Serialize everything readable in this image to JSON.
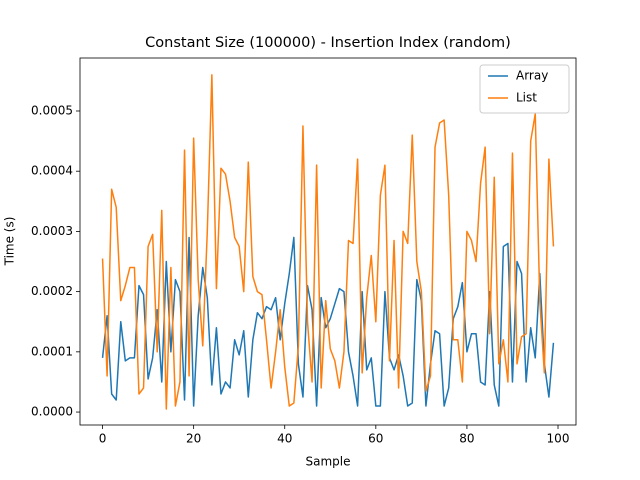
{
  "chart_data": {
    "type": "line",
    "title": "Constant Size (100000) - Insertion Index (random)",
    "x_label": "Sample",
    "y_label": "Time (s)",
    "x": [
      0,
      1,
      2,
      3,
      4,
      5,
      6,
      7,
      8,
      9,
      10,
      11,
      12,
      13,
      14,
      15,
      16,
      17,
      18,
      19,
      20,
      21,
      22,
      23,
      24,
      25,
      26,
      27,
      28,
      29,
      30,
      31,
      32,
      33,
      34,
      35,
      36,
      37,
      38,
      39,
      40,
      41,
      42,
      43,
      44,
      45,
      46,
      47,
      48,
      49,
      50,
      51,
      52,
      53,
      54,
      55,
      56,
      57,
      58,
      59,
      60,
      61,
      62,
      63,
      64,
      65,
      66,
      67,
      68,
      69,
      70,
      71,
      72,
      73,
      74,
      75,
      76,
      77,
      78,
      79,
      80,
      81,
      82,
      83,
      84,
      85,
      86,
      87,
      88,
      89,
      90,
      91,
      92,
      93,
      94,
      95,
      96,
      97,
      98,
      99
    ],
    "series": [
      {
        "name": "Array",
        "color": "#1f77b4",
        "values": [
          9e-05,
          0.00016,
          3e-05,
          2e-05,
          0.00015,
          8.5e-05,
          9e-05,
          9e-05,
          0.00021,
          0.000195,
          5.5e-05,
          9e-05,
          0.00017,
          5e-05,
          0.00025,
          0.0001,
          0.00022,
          0.0002,
          2e-05,
          0.00029,
          1e-05,
          0.00016,
          0.00024,
          0.00019,
          4.5e-05,
          0.00014,
          3e-05,
          5e-05,
          4e-05,
          0.00012,
          9.5e-05,
          0.000135,
          2.5e-05,
          0.00012,
          0.000165,
          0.000155,
          0.000175,
          0.00017,
          0.00019,
          0.00012,
          0.00018,
          0.00023,
          0.00029,
          8e-05,
          2.5e-05,
          0.00021,
          0.00017,
          1e-05,
          0.00019,
          0.00014,
          0.000155,
          0.00018,
          0.000205,
          0.0002,
          0.0001,
          6e-05,
          1e-05,
          0.0002,
          7e-05,
          9e-05,
          1e-05,
          1e-05,
          0.0002,
          9e-05,
          7e-05,
          9.5e-05,
          6e-05,
          1e-05,
          1.5e-05,
          0.00022,
          0.000185,
          1e-05,
          8e-05,
          0.000135,
          0.00013,
          1e-05,
          4e-05,
          0.000155,
          0.000175,
          0.000215,
          0.0001,
          0.00013,
          0.00013,
          5e-05,
          4.5e-05,
          0.0002,
          4.5e-05,
          1e-05,
          0.000275,
          0.00028,
          5e-05,
          0.00025,
          0.00023,
          5e-05,
          0.00014,
          9e-05,
          0.00023,
          8e-05,
          2.5e-05,
          0.000115
        ]
      },
      {
        "name": "List",
        "color": "#ff7f0e",
        "values": [
          0.000255,
          6e-05,
          0.00037,
          0.00034,
          0.000185,
          0.00021,
          0.00024,
          0.00024,
          3e-05,
          4e-05,
          0.000275,
          0.000295,
          0.0001,
          0.000335,
          5e-06,
          0.00024,
          1e-05,
          5e-05,
          0.000435,
          6e-05,
          0.000455,
          0.00022,
          0.00011,
          0.0003,
          0.00056,
          0.000205,
          0.000405,
          0.000395,
          0.00035,
          0.00029,
          0.000275,
          0.0002,
          0.000415,
          0.000225,
          0.0002,
          0.000195,
          0.00012,
          4e-05,
          0.0001,
          0.00017,
          7.5e-05,
          1e-05,
          1.5e-05,
          0.00011,
          0.000475,
          0.00015,
          5e-05,
          0.00041,
          4e-05,
          0.000185,
          0.000105,
          8.5e-05,
          4e-05,
          0.0001,
          0.000285,
          0.00028,
          0.00042,
          6.5e-05,
          0.00019,
          0.00026,
          0.00015,
          0.00036,
          0.00041,
          8.5e-05,
          0.000285,
          4e-05,
          0.0003,
          0.00028,
          0.00046,
          0.00025,
          0.0002,
          3.5e-05,
          6e-05,
          0.00044,
          0.00048,
          0.000485,
          0.00036,
          0.00012,
          0.00012,
          5e-05,
          0.0003,
          0.000285,
          0.00025,
          0.00038,
          0.00044,
          0.00013,
          0.00039,
          8e-05,
          0.00012,
          5e-05,
          0.00043,
          8e-05,
          0.000125,
          0.00013,
          0.00045,
          0.000495,
          0.000185,
          6.5e-05,
          0.00042,
          0.000275
        ]
      }
    ],
    "xlim": [
      -4.95,
      103.95
    ],
    "xticks": [
      0,
      20,
      40,
      60,
      80,
      100
    ],
    "ylim": [
      -2.15e-05,
      0.000588
    ],
    "yticks": [
      {
        "value": 0,
        "label": "0.0000"
      },
      0.0001,
      0.0002,
      0.0003,
      0.0004,
      0.0005
    ],
    "legend": "upper right"
  }
}
